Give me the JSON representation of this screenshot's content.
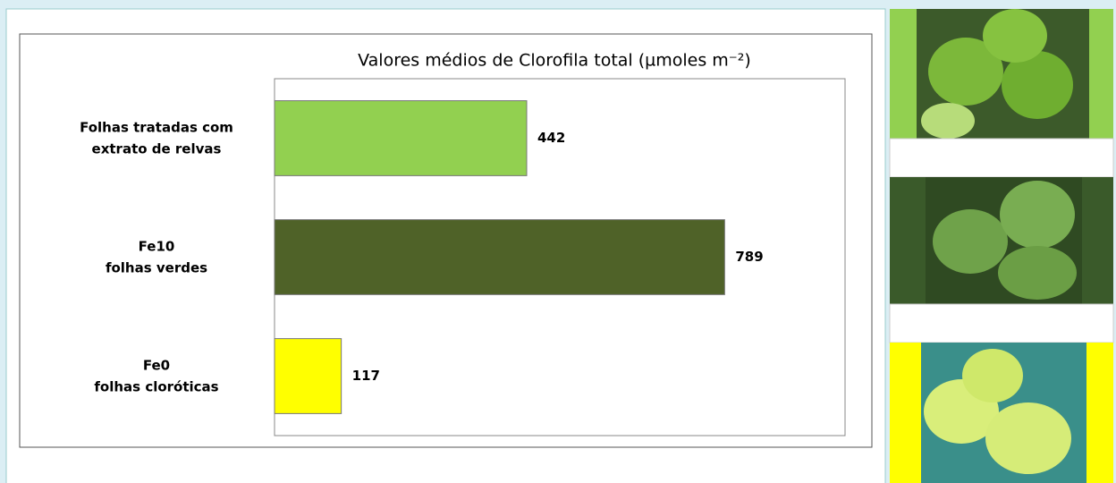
{
  "chart_data": {
    "type": "barh",
    "title": "Valores médios de Clorofila total (µmoles m⁻²)",
    "categories": [
      "Folhas tratadas com\nextrato de relvas",
      "Fe10\nfolhas verdes",
      "Fe0\nfolhas cloróticas"
    ],
    "values": [
      442,
      789,
      117
    ],
    "colors": [
      "#92d050",
      "#4f6228",
      "#ffff00"
    ],
    "xlim": [
      0,
      1000
    ]
  }
}
